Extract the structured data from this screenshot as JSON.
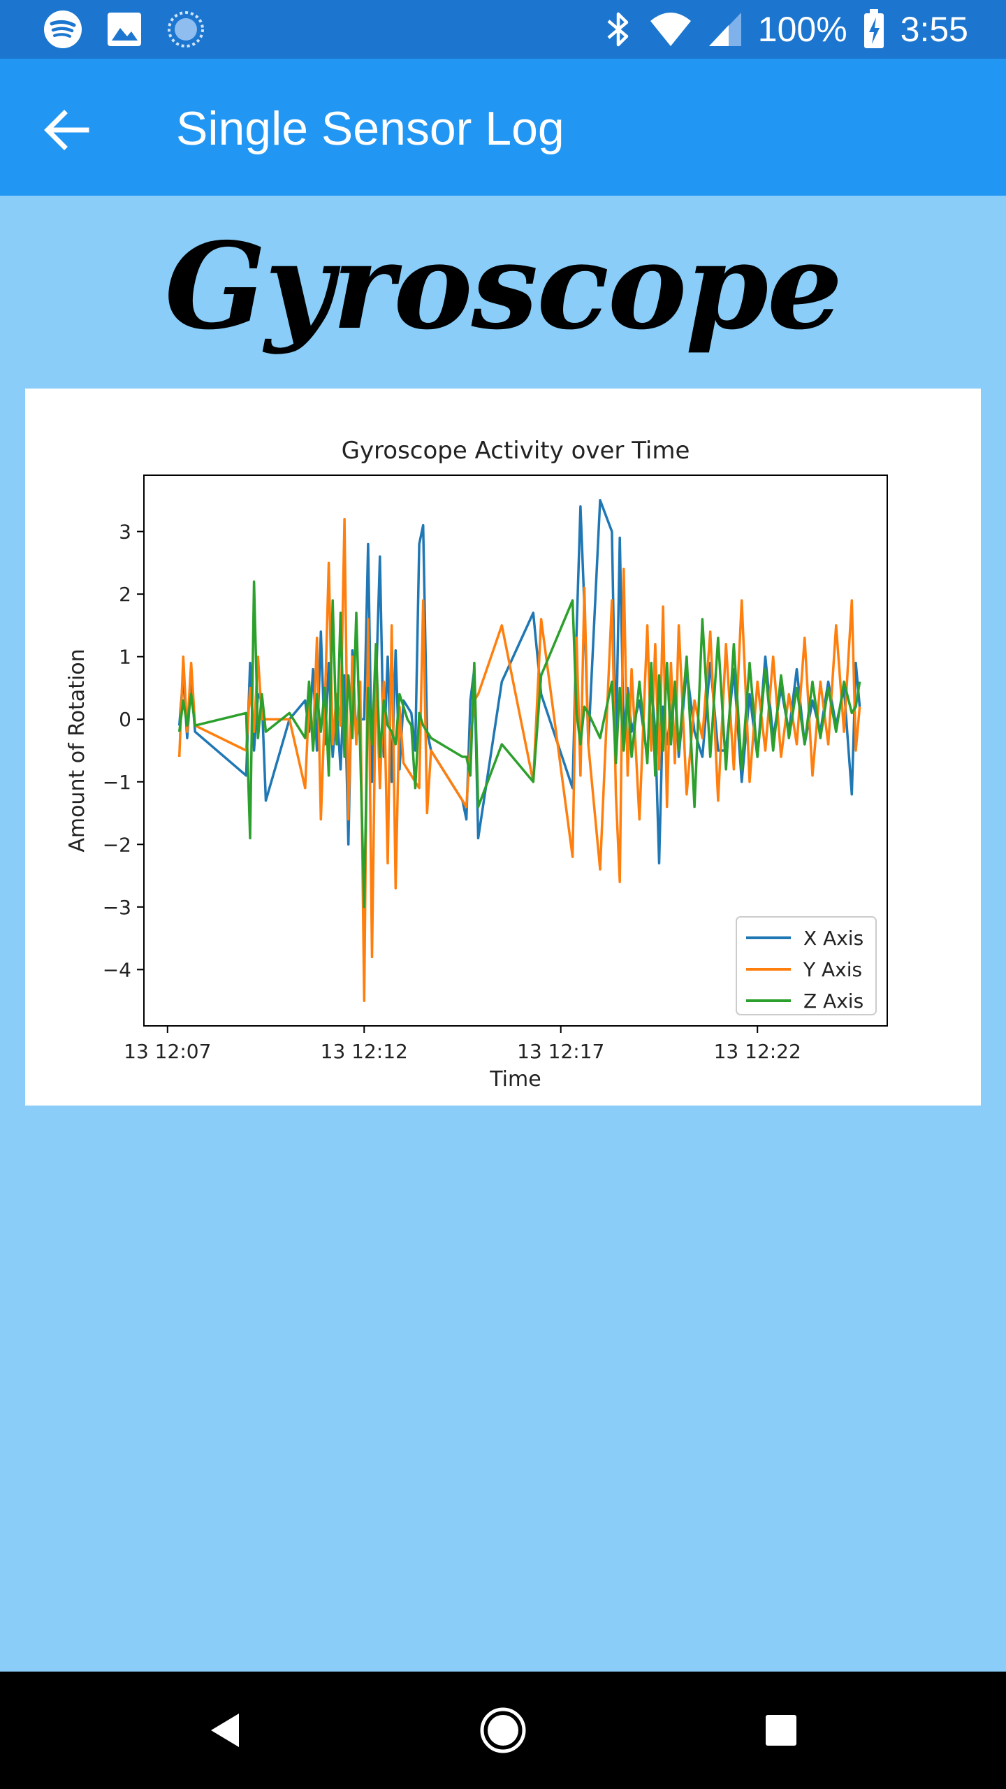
{
  "status_bar": {
    "battery": "100%",
    "time": "3:55",
    "icons": [
      "spotify-icon",
      "image-icon",
      "sync-icon",
      "bluetooth-icon",
      "wifi-icon",
      "signal-icon",
      "battery-charging-icon"
    ]
  },
  "app_bar": {
    "title": "Single Sensor Log",
    "back_icon": "arrow-left-icon"
  },
  "page": {
    "heading": "Gyroscope"
  },
  "colors": {
    "status_bar": "#1C75CE",
    "app_bar": "#2196F3",
    "background": "#89CDF8",
    "x_axis": "#1F77B4",
    "y_axis": "#FF7F0E",
    "z_axis": "#2CA02C"
  },
  "chart_data": {
    "type": "line",
    "title": "Gyroscope Activity over Time",
    "xlabel": "Time",
    "ylabel": "Amount of Rotation",
    "x_ticks": [
      "13 12:07",
      "13 12:12",
      "13 12:17",
      "13 12:22"
    ],
    "y_ticks": [
      "3",
      "2",
      "1",
      "0",
      "−1",
      "−2",
      "−3",
      "−4"
    ],
    "y_tick_values": [
      3,
      2,
      1,
      0,
      -1,
      -2,
      -3,
      -4
    ],
    "xlim": [
      "12:06:24",
      "12:25:18"
    ],
    "ylim": [
      -4.9,
      3.9
    ],
    "grid": false,
    "legend_position": "bottom-right",
    "series": [
      {
        "name": "X Axis",
        "color": "#1F77B4",
        "x": [
          "12:07:18",
          "12:07:24",
          "12:07:30",
          "12:07:36",
          "12:07:42",
          "12:09:00",
          "12:09:06",
          "12:09:12",
          "12:09:18",
          "12:09:24",
          "12:09:30",
          "12:10:06",
          "12:10:30",
          "12:10:36",
          "12:10:42",
          "12:10:48",
          "12:10:54",
          "12:11:00",
          "12:11:06",
          "12:11:12",
          "12:11:18",
          "12:11:24",
          "12:11:30",
          "12:11:36",
          "12:11:42",
          "12:11:48",
          "12:11:54",
          "12:12:00",
          "12:12:06",
          "12:12:12",
          "12:12:18",
          "12:12:24",
          "12:12:30",
          "12:12:36",
          "12:12:42",
          "12:12:48",
          "12:12:54",
          "12:13:00",
          "12:13:06",
          "12:13:12",
          "12:13:18",
          "12:13:24",
          "12:13:30",
          "12:13:36",
          "12:13:42",
          "12:14:30",
          "12:14:36",
          "12:14:42",
          "12:14:48",
          "12:14:54",
          "12:15:30",
          "12:16:18",
          "12:16:30",
          "12:17:18",
          "12:17:24",
          "12:17:30",
          "12:17:36",
          "12:17:42",
          "12:18:00",
          "12:18:18",
          "12:18:24",
          "12:18:30",
          "12:18:36",
          "12:18:42",
          "12:18:48",
          "12:19:00",
          "12:19:12",
          "12:19:18",
          "12:19:24",
          "12:19:30",
          "12:19:36",
          "12:19:42",
          "12:19:48",
          "12:19:54",
          "12:20:00",
          "12:20:12",
          "12:20:24",
          "12:20:36",
          "12:20:48",
          "12:21:00",
          "12:21:12",
          "12:21:24",
          "12:21:36",
          "12:21:48",
          "12:22:00",
          "12:22:12",
          "12:22:24",
          "12:22:36",
          "12:22:48",
          "12:23:00",
          "12:23:12",
          "12:23:24",
          "12:23:36",
          "12:23:48",
          "12:24:00",
          "12:24:12",
          "12:24:24",
          "12:24:30",
          "12:24:36"
        ],
        "y": [
          -0.1,
          0.7,
          -0.3,
          0.6,
          -0.2,
          -0.9,
          0.9,
          -0.5,
          0.4,
          0.3,
          -1.3,
          0.0,
          0.3,
          -0.2,
          0.8,
          -0.5,
          1.4,
          -0.4,
          0.9,
          -0.6,
          0.2,
          -0.8,
          0.7,
          -2.0,
          1.1,
          -0.3,
          0.0,
          0.0,
          2.8,
          -1.0,
          0.5,
          2.6,
          -0.6,
          1.0,
          -1.0,
          1.1,
          -0.8,
          0.3,
          0.2,
          0.1,
          -0.5,
          2.8,
          3.1,
          -0.2,
          -0.5,
          -1.3,
          -1.6,
          0.3,
          0.8,
          -1.9,
          0.6,
          1.7,
          0.4,
          -1.1,
          1.4,
          3.4,
          1.8,
          -0.4,
          3.5,
          3.0,
          -0.5,
          2.9,
          -0.3,
          0.5,
          -0.2,
          0.3,
          -0.6,
          0.6,
          -0.2,
          -2.3,
          0.2,
          -0.4,
          0.1,
          0.5,
          -0.6,
          0.8,
          -0.2,
          -0.6,
          0.9,
          -0.5,
          -0.5,
          0.8,
          -1.0,
          0.4,
          -0.6,
          1.0,
          -0.3,
          0.5,
          -0.2,
          0.8,
          -0.4,
          0.3,
          -0.2,
          0.6,
          -0.1,
          0.5,
          -1.2,
          0.9,
          0.2
        ]
      },
      {
        "name": "Y Axis",
        "color": "#FF7F0E",
        "x": [
          "12:07:18",
          "12:07:24",
          "12:07:30",
          "12:07:36",
          "12:07:42",
          "12:09:00",
          "12:09:06",
          "12:09:12",
          "12:09:18",
          "12:09:24",
          "12:09:30",
          "12:10:06",
          "12:10:30",
          "12:10:36",
          "12:10:42",
          "12:10:48",
          "12:10:54",
          "12:11:00",
          "12:11:06",
          "12:11:12",
          "12:11:18",
          "12:11:24",
          "12:11:30",
          "12:11:36",
          "12:11:42",
          "12:11:48",
          "12:11:54",
          "12:12:00",
          "12:12:06",
          "12:12:12",
          "12:12:18",
          "12:12:24",
          "12:12:30",
          "12:12:36",
          "12:12:42",
          "12:12:48",
          "12:12:54",
          "12:13:00",
          "12:13:06",
          "12:13:12",
          "12:13:18",
          "12:13:24",
          "12:13:30",
          "12:13:36",
          "12:13:42",
          "12:14:30",
          "12:14:36",
          "12:14:42",
          "12:14:48",
          "12:14:54",
          "12:15:30",
          "12:16:18",
          "12:16:30",
          "12:17:18",
          "12:17:24",
          "12:17:30",
          "12:17:36",
          "12:17:42",
          "12:18:00",
          "12:18:18",
          "12:18:24",
          "12:18:30",
          "12:18:36",
          "12:18:42",
          "12:18:48",
          "12:19:00",
          "12:19:12",
          "12:19:18",
          "12:19:24",
          "12:19:30",
          "12:19:36",
          "12:19:42",
          "12:19:48",
          "12:19:54",
          "12:20:00",
          "12:20:12",
          "12:20:24",
          "12:20:36",
          "12:20:48",
          "12:21:00",
          "12:21:12",
          "12:21:24",
          "12:21:36",
          "12:21:48",
          "12:22:00",
          "12:22:12",
          "12:22:24",
          "12:22:36",
          "12:22:48",
          "12:23:00",
          "12:23:12",
          "12:23:24",
          "12:23:36",
          "12:23:48",
          "12:24:00",
          "12:24:12",
          "12:24:24",
          "12:24:30",
          "12:24:36"
        ],
        "y": [
          -0.6,
          1.0,
          -0.2,
          0.9,
          -0.1,
          -0.5,
          0.5,
          -0.2,
          1.0,
          0.0,
          0.0,
          0.0,
          -1.1,
          0.3,
          -0.4,
          1.3,
          -1.6,
          0.2,
          2.5,
          -0.4,
          0.4,
          -0.1,
          3.2,
          -1.6,
          1.0,
          -0.4,
          0.6,
          -4.5,
          1.6,
          -3.8,
          0.8,
          -1.1,
          0.6,
          -2.3,
          1.5,
          -2.7,
          0.2,
          -0.7,
          -0.8,
          -0.9,
          -1.0,
          -1.1,
          1.9,
          -1.5,
          -0.5,
          -1.3,
          -1.4,
          -0.4,
          0.3,
          0.4,
          1.5,
          -1.0,
          1.6,
          -2.2,
          1.3,
          -0.9,
          2.1,
          -0.4,
          -2.4,
          1.9,
          -1.2,
          -2.6,
          2.4,
          -0.9,
          0.8,
          -1.6,
          1.5,
          -0.5,
          1.2,
          -0.8,
          1.8,
          -1.4,
          0.9,
          -0.7,
          1.5,
          -1.2,
          0.3,
          -0.3,
          1.4,
          -1.3,
          1.2,
          -0.8,
          1.9,
          -1.0,
          0.6,
          -0.5,
          1.0,
          -0.6,
          0.4,
          -0.4,
          1.3,
          -0.9,
          0.6,
          -0.4,
          1.5,
          -0.2,
          1.9,
          -0.5,
          0.2
        ]
      },
      {
        "name": "Z Axis",
        "color": "#2CA02C",
        "x": [
          "12:07:18",
          "12:07:24",
          "12:07:30",
          "12:07:36",
          "12:07:42",
          "12:09:00",
          "12:09:06",
          "12:09:12",
          "12:09:18",
          "12:09:24",
          "12:09:30",
          "12:10:06",
          "12:10:30",
          "12:10:36",
          "12:10:42",
          "12:10:48",
          "12:10:54",
          "12:11:00",
          "12:11:06",
          "12:11:12",
          "12:11:18",
          "12:11:24",
          "12:11:30",
          "12:11:36",
          "12:11:42",
          "12:11:48",
          "12:11:54",
          "12:12:00",
          "12:12:06",
          "12:12:12",
          "12:12:18",
          "12:12:24",
          "12:12:30",
          "12:12:36",
          "12:12:42",
          "12:12:48",
          "12:12:54",
          "12:13:00",
          "12:13:06",
          "12:13:12",
          "12:13:18",
          "12:13:24",
          "12:13:30",
          "12:13:36",
          "12:13:42",
          "12:14:30",
          "12:14:36",
          "12:14:42",
          "12:14:48",
          "12:14:54",
          "12:15:30",
          "12:16:18",
          "12:16:30",
          "12:17:18",
          "12:17:24",
          "12:17:30",
          "12:17:36",
          "12:17:42",
          "12:18:00",
          "12:18:18",
          "12:18:24",
          "12:18:30",
          "12:18:36",
          "12:18:42",
          "12:18:48",
          "12:19:00",
          "12:19:12",
          "12:19:18",
          "12:19:24",
          "12:19:30",
          "12:19:36",
          "12:19:42",
          "12:19:48",
          "12:19:54",
          "12:20:00",
          "12:20:12",
          "12:20:24",
          "12:20:36",
          "12:20:48",
          "12:21:00",
          "12:21:12",
          "12:21:24",
          "12:21:36",
          "12:21:48",
          "12:22:00",
          "12:22:12",
          "12:22:24",
          "12:22:36",
          "12:22:48",
          "12:23:00",
          "12:23:12",
          "12:23:24",
          "12:23:36",
          "12:23:48",
          "12:24:00",
          "12:24:12",
          "12:24:24",
          "12:24:30",
          "12:24:36"
        ],
        "y": [
          -0.2,
          0.3,
          -0.1,
          0.4,
          -0.1,
          0.1,
          -1.9,
          2.2,
          -0.3,
          0.4,
          -0.2,
          0.1,
          -0.3,
          0.6,
          -0.5,
          0.4,
          -0.2,
          0.5,
          -0.9,
          1.9,
          -0.4,
          1.7,
          -0.6,
          0.7,
          -0.3,
          1.7,
          -0.5,
          -3.0,
          0.5,
          -0.4,
          1.2,
          -0.6,
          0.3,
          -0.1,
          -0.2,
          -0.4,
          0.4,
          0.2,
          0.0,
          -0.1,
          -1.1,
          0.1,
          -0.1,
          -0.2,
          -0.3,
          -0.6,
          -0.6,
          -0.9,
          0.9,
          -1.4,
          -0.4,
          -1.0,
          0.7,
          1.9,
          0.1,
          -0.4,
          0.2,
          0.1,
          -0.3,
          0.6,
          -0.7,
          0.5,
          -0.5,
          0.4,
          -0.6,
          0.6,
          -0.7,
          0.9,
          -0.9,
          0.7,
          -0.5,
          0.9,
          -0.4,
          0.6,
          -0.5,
          1.0,
          -1.4,
          1.6,
          -0.6,
          1.3,
          -0.8,
          1.2,
          -0.8,
          0.9,
          -0.6,
          0.8,
          -0.5,
          0.7,
          -0.3,
          0.5,
          -0.4,
          0.6,
          -0.3,
          0.5,
          -0.2,
          0.6,
          0.1,
          0.2,
          0.6
        ]
      }
    ]
  },
  "nav_bar": {
    "buttons": [
      "back-triangle-icon",
      "home-circle-icon",
      "recents-square-icon"
    ]
  }
}
